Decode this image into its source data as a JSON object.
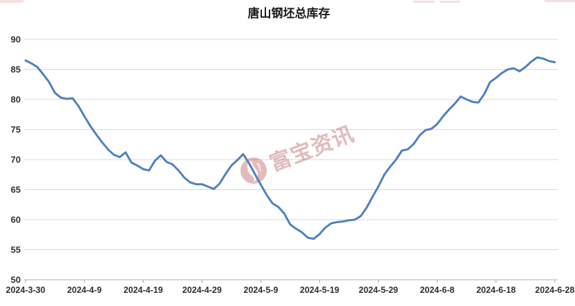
{
  "title": "唐山钢坯总库存",
  "watermark": {
    "text": "富宝资讯",
    "logo": "flame-icon"
  },
  "colors": {
    "line": "#4f81bd",
    "gridline": "#d9d9d9",
    "axis_line": "#bfbfbf",
    "tick": "#a6a6a6",
    "label": "#303030",
    "title": "#1a1a1a",
    "watermark_pink": "#c87e7e",
    "top_mark_pink": "#e49a9a"
  },
  "chart_data": {
    "type": "line",
    "title": "唐山钢坯总库存",
    "xlabel": "",
    "ylabel": "",
    "ylim": [
      50,
      90
    ],
    "y_ticks": [
      50,
      55,
      60,
      65,
      70,
      75,
      80,
      85,
      90
    ],
    "x_tick_labels": [
      "2024-3-30",
      "2024-4-9",
      "2024-4-19",
      "2024-4-29",
      "2024-5-9",
      "2024-5-19",
      "2024-5-29",
      "2024-6-8",
      "2024-6-18",
      "2024-6-28"
    ],
    "grid": "horizontal",
    "legend_position": "none",
    "x": [
      "2024-3-30",
      "2024-3-31",
      "2024-4-1",
      "2024-4-2",
      "2024-4-3",
      "2024-4-4",
      "2024-4-5",
      "2024-4-6",
      "2024-4-7",
      "2024-4-8",
      "2024-4-9",
      "2024-4-10",
      "2024-4-11",
      "2024-4-12",
      "2024-4-13",
      "2024-4-14",
      "2024-4-15",
      "2024-4-16",
      "2024-4-17",
      "2024-4-18",
      "2024-4-19",
      "2024-4-20",
      "2024-4-21",
      "2024-4-22",
      "2024-4-23",
      "2024-4-24",
      "2024-4-25",
      "2024-4-26",
      "2024-4-27",
      "2024-4-28",
      "2024-4-29",
      "2024-4-30",
      "2024-5-1",
      "2024-5-2",
      "2024-5-3",
      "2024-5-4",
      "2024-5-5",
      "2024-5-6",
      "2024-5-7",
      "2024-5-8",
      "2024-5-9",
      "2024-5-10",
      "2024-5-11",
      "2024-5-12",
      "2024-5-13",
      "2024-5-14",
      "2024-5-15",
      "2024-5-16",
      "2024-5-17",
      "2024-5-18",
      "2024-5-19",
      "2024-5-20",
      "2024-5-21",
      "2024-5-22",
      "2024-5-23",
      "2024-5-24",
      "2024-5-25",
      "2024-5-26",
      "2024-5-27",
      "2024-5-28",
      "2024-5-29",
      "2024-5-30",
      "2024-5-31",
      "2024-6-1",
      "2024-6-2",
      "2024-6-3",
      "2024-6-4",
      "2024-6-5",
      "2024-6-6",
      "2024-6-7",
      "2024-6-8",
      "2024-6-9",
      "2024-6-10",
      "2024-6-11",
      "2024-6-12",
      "2024-6-13",
      "2024-6-14",
      "2024-6-15",
      "2024-6-16",
      "2024-6-17",
      "2024-6-18",
      "2024-6-19",
      "2024-6-20",
      "2024-6-21",
      "2024-6-22",
      "2024-6-23",
      "2024-6-24",
      "2024-6-25",
      "2024-6-26",
      "2024-6-27",
      "2024-6-28"
    ],
    "values": [
      86.5,
      86.0,
      85.4,
      84.2,
      82.9,
      81.1,
      80.3,
      80.1,
      80.2,
      78.9,
      77.2,
      75.6,
      74.2,
      72.9,
      71.7,
      70.8,
      70.4,
      71.2,
      69.5,
      69.0,
      68.4,
      68.2,
      69.8,
      70.7,
      69.6,
      69.2,
      68.2,
      67.0,
      66.2,
      65.9,
      65.9,
      65.5,
      65.1,
      66.0,
      67.6,
      69.0,
      69.9,
      70.9,
      69.4,
      67.6,
      65.8,
      64.1,
      62.7,
      62.1,
      61.0,
      59.2,
      58.5,
      57.9,
      57.0,
      56.8,
      57.6,
      58.7,
      59.4,
      59.6,
      59.7,
      59.9,
      60.0,
      60.6,
      62.0,
      63.8,
      65.5,
      67.5,
      68.8,
      70.0,
      71.5,
      71.7,
      72.6,
      74.0,
      74.9,
      75.1,
      75.9,
      77.2,
      78.3,
      79.3,
      80.5,
      80.0,
      79.6,
      79.5,
      80.9,
      82.9,
      83.6,
      84.4,
      85.0,
      85.2,
      84.7,
      85.4,
      86.3,
      87.0,
      86.8,
      86.4,
      86.2
    ]
  }
}
